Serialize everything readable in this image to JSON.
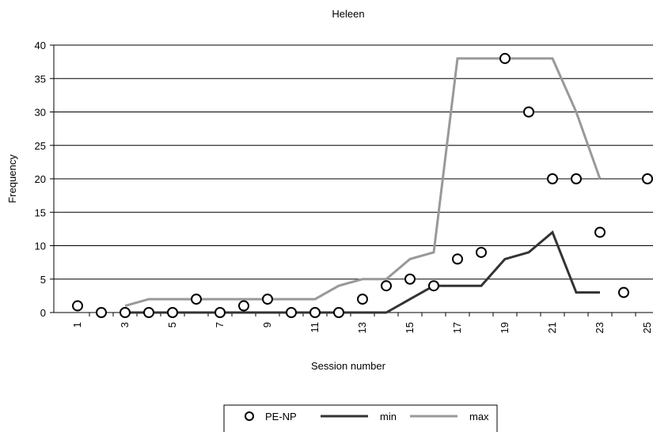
{
  "chart_data": {
    "type": "line",
    "title": "Heleen",
    "xlabel": "Session number",
    "ylabel": "Frequency",
    "ylim": [
      0,
      40
    ],
    "xlim": [
      1,
      25
    ],
    "yticks": [
      0,
      5,
      10,
      15,
      20,
      25,
      30,
      35,
      40
    ],
    "xticks": [
      1,
      3,
      5,
      7,
      9,
      11,
      13,
      15,
      17,
      19,
      21,
      23,
      25
    ],
    "grid": "horizontal",
    "legend_position": "bottom",
    "series": [
      {
        "name": "PE-NP",
        "style": "markers",
        "color": "#000000",
        "x": [
          1,
          2,
          3,
          4,
          5,
          6,
          7,
          8,
          9,
          10,
          11,
          12,
          13,
          14,
          15,
          16,
          17,
          18,
          19,
          20,
          21,
          22,
          23,
          24,
          25
        ],
        "y": [
          1,
          0,
          0,
          0,
          0,
          2,
          0,
          1,
          2,
          0,
          0,
          0,
          2,
          4,
          5,
          4,
          8,
          9,
          38,
          30,
          20,
          20,
          12,
          3,
          20
        ]
      },
      {
        "name": "min",
        "style": "line",
        "color": "#333333",
        "x": [
          3,
          4,
          5,
          6,
          7,
          8,
          9,
          10,
          11,
          12,
          13,
          14,
          15,
          16,
          17,
          18,
          19,
          20,
          21,
          22,
          23
        ],
        "y": [
          0,
          0,
          0,
          0,
          0,
          0,
          0,
          0,
          0,
          0,
          0,
          0,
          2,
          4,
          4,
          4,
          8,
          9,
          12,
          3,
          3
        ]
      },
      {
        "name": "max",
        "style": "line",
        "color": "#999999",
        "x": [
          3,
          4,
          5,
          6,
          7,
          8,
          9,
          10,
          11,
          12,
          13,
          14,
          15,
          16,
          17,
          18,
          19,
          20,
          21,
          22,
          23
        ],
        "y": [
          1,
          2,
          2,
          2,
          2,
          2,
          2,
          2,
          2,
          4,
          5,
          5,
          8,
          9,
          38,
          38,
          38,
          38,
          38,
          30,
          20
        ]
      }
    ]
  }
}
